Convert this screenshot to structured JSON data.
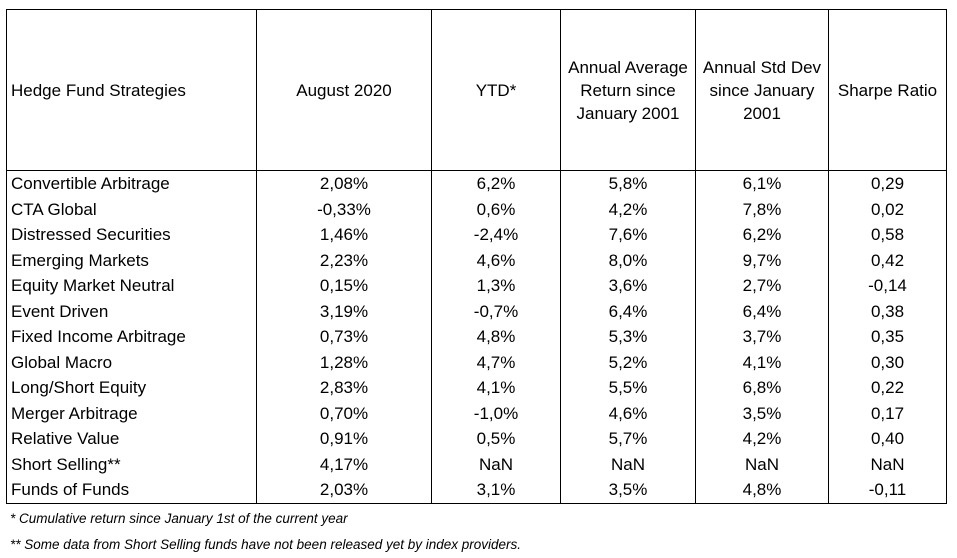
{
  "table": {
    "headers": [
      "Hedge Fund Strategies",
      "August 2020",
      "YTD*",
      "Annual Average Return since January 2001",
      "Annual Std Dev since January 2001",
      "Sharpe Ratio"
    ],
    "rows": [
      [
        "Convertible Arbitrage",
        "2,08%",
        "6,2%",
        "5,8%",
        "6,1%",
        "0,29"
      ],
      [
        "CTA Global",
        "-0,33%",
        "0,6%",
        "4,2%",
        "7,8%",
        "0,02"
      ],
      [
        "Distressed Securities",
        "1,46%",
        "-2,4%",
        "7,6%",
        "6,2%",
        "0,58"
      ],
      [
        "Emerging Markets",
        "2,23%",
        "4,6%",
        "8,0%",
        "9,7%",
        "0,42"
      ],
      [
        "Equity Market Neutral",
        "0,15%",
        "1,3%",
        "3,6%",
        "2,7%",
        "-0,14"
      ],
      [
        "Event Driven",
        "3,19%",
        "-0,7%",
        "6,4%",
        "6,4%",
        "0,38"
      ],
      [
        "Fixed Income Arbitrage",
        "0,73%",
        "4,8%",
        "5,3%",
        "3,7%",
        "0,35"
      ],
      [
        "Global Macro",
        "1,28%",
        "4,7%",
        "5,2%",
        "4,1%",
        "0,30"
      ],
      [
        "Long/Short Equity",
        "2,83%",
        "4,1%",
        "5,5%",
        "6,8%",
        "0,22"
      ],
      [
        "Merger Arbitrage",
        "0,70%",
        "-1,0%",
        "4,6%",
        "3,5%",
        "0,17"
      ],
      [
        "Relative Value",
        "0,91%",
        "0,5%",
        "5,7%",
        "4,2%",
        "0,40"
      ],
      [
        "Short Selling**",
        "4,17%",
        "NaN",
        "NaN",
        "NaN",
        "NaN"
      ],
      [
        "Funds of Funds",
        "2,03%",
        "3,1%",
        "3,5%",
        "4,8%",
        "-0,11"
      ]
    ]
  },
  "footnotes": [
    "* Cumulative return since January 1st of the current year",
    "** Some data from Short Selling funds have not been released yet by index providers."
  ]
}
